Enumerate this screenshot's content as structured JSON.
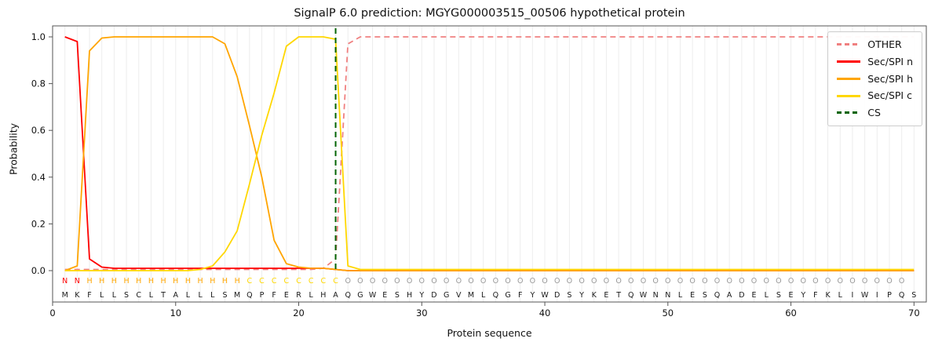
{
  "chart_data": {
    "type": "line",
    "title": "SignalP 6.0 prediction: MGYG000003515_00506 hypothetical protein",
    "xlabel": "Protein sequence",
    "ylabel": "Probability",
    "xticks": [
      0,
      10,
      20,
      30,
      40,
      50,
      60,
      70
    ],
    "yticks": [
      0.0,
      0.2,
      0.4,
      0.6,
      0.8,
      1.0
    ],
    "xlim": [
      0,
      71
    ],
    "ylim": [
      -0.13,
      1.05
    ],
    "grid": "vertical-per-residue",
    "legend_position": "upper right",
    "x_start": 1,
    "x_step": 1,
    "series": [
      {
        "name": "OTHER",
        "color": "#f08080",
        "dash": "dashed",
        "values": [
          0.005,
          0.005,
          0.005,
          0.005,
          0.005,
          0.005,
          0.005,
          0.005,
          0.005,
          0.005,
          0.005,
          0.005,
          0.005,
          0.005,
          0.005,
          0.005,
          0.005,
          0.005,
          0.005,
          0.005,
          0.005,
          0.01,
          0.05,
          0.97,
          1.0,
          1.0,
          1.0,
          1.0,
          1.0,
          1.0,
          1.0,
          1.0,
          1.0,
          1.0,
          1.0,
          1.0,
          1.0,
          1.0,
          1.0,
          1.0,
          1.0,
          1.0,
          1.0,
          1.0,
          1.0,
          1.0,
          1.0,
          1.0,
          1.0,
          1.0,
          1.0,
          1.0,
          1.0,
          1.0,
          1.0,
          1.0,
          1.0,
          1.0,
          1.0,
          1.0,
          1.0,
          1.0,
          1.0,
          1.0,
          1.0,
          1.0,
          1.0,
          1.0,
          1.0,
          1.0
        ]
      },
      {
        "name": "Sec/SPI n",
        "color": "#ff0000",
        "dash": "solid",
        "values": [
          1.0,
          0.98,
          0.05,
          0.015,
          0.01,
          0.01,
          0.01,
          0.01,
          0.01,
          0.01,
          0.01,
          0.01,
          0.01,
          0.01,
          0.01,
          0.01,
          0.01,
          0.01,
          0.01,
          0.01,
          0.01,
          0.01,
          0.005,
          0,
          0,
          0,
          0,
          0,
          0,
          0,
          0,
          0,
          0,
          0,
          0,
          0,
          0,
          0,
          0,
          0,
          0,
          0,
          0,
          0,
          0,
          0,
          0,
          0,
          0,
          0,
          0,
          0,
          0,
          0,
          0,
          0,
          0,
          0,
          0,
          0,
          0,
          0,
          0,
          0,
          0,
          0,
          0,
          0,
          0,
          0
        ]
      },
      {
        "name": "Sec/SPI h",
        "color": "#ffa500",
        "dash": "solid",
        "values": [
          0.0,
          0.02,
          0.94,
          0.995,
          1.0,
          1.0,
          1.0,
          1.0,
          1.0,
          1.0,
          1.0,
          1.0,
          1.0,
          0.97,
          0.83,
          0.62,
          0.4,
          0.13,
          0.03,
          0.015,
          0.01,
          0.01,
          0.005,
          0,
          0,
          0,
          0,
          0,
          0,
          0,
          0,
          0,
          0,
          0,
          0,
          0,
          0,
          0,
          0,
          0,
          0,
          0,
          0,
          0,
          0,
          0,
          0,
          0,
          0,
          0,
          0,
          0,
          0,
          0,
          0,
          0,
          0,
          0,
          0,
          0,
          0,
          0,
          0,
          0,
          0,
          0,
          0,
          0,
          0,
          0
        ]
      },
      {
        "name": "Sec/SPI c",
        "color": "#ffd700",
        "dash": "solid",
        "values": [
          0,
          0,
          0,
          0,
          0,
          0,
          0,
          0,
          0,
          0,
          0,
          0.005,
          0.02,
          0.08,
          0.17,
          0.37,
          0.58,
          0.76,
          0.96,
          1.0,
          1.0,
          1.0,
          0.99,
          0.02,
          0.005,
          0.005,
          0.005,
          0.005,
          0.005,
          0.005,
          0.005,
          0.005,
          0.005,
          0.005,
          0.005,
          0.005,
          0.005,
          0.005,
          0.005,
          0.005,
          0.005,
          0.005,
          0.005,
          0.005,
          0.005,
          0.005,
          0.005,
          0.005,
          0.005,
          0.005,
          0.005,
          0.005,
          0.005,
          0.005,
          0.005,
          0.005,
          0.005,
          0.005,
          0.005,
          0.005,
          0.005,
          0.005,
          0.005,
          0.005,
          0.005,
          0.005,
          0.005,
          0.005,
          0.005,
          0.005
        ]
      },
      {
        "name": "CS",
        "color": "#006400",
        "dash": "dashed",
        "type": "vline",
        "x": 23
      }
    ],
    "sequence": "MKFLLSCLTALLLSMQPFERLHAQGWESHYDGVMLQGFYWDSYKETQWNNLESQADELSEYFKLIWIPQS",
    "annotation": "NNHHHHHHHHHHHHHCCCCCCCCOOOOOOOOOOOOOOOOOOOOOOOOOOOOOOOOOOOOOOOOOOOOOO",
    "annotation_colors": {
      "N": "#ff0000",
      "H": "#ffa500",
      "C": "#ffd700",
      "O": "#999999"
    }
  }
}
